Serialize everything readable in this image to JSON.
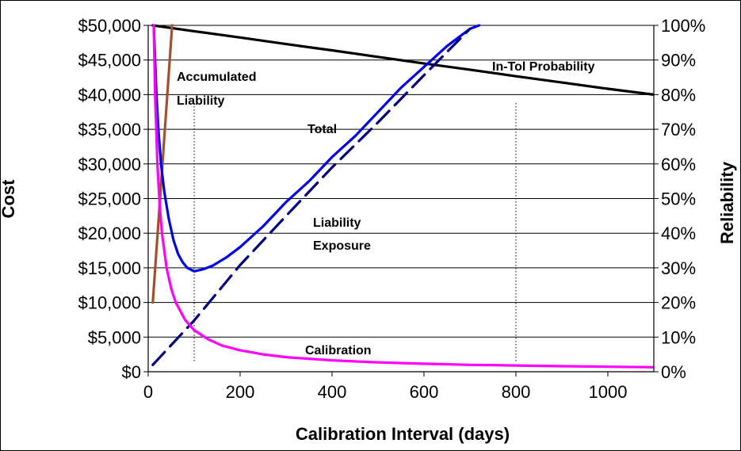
{
  "chart_data": {
    "type": "line",
    "title": "",
    "xlabel": "Calibration Interval (days)",
    "ylabel": "Cost",
    "y2label": "Reliability",
    "xlim": [
      0,
      1100
    ],
    "ylim": [
      0,
      50000
    ],
    "y2lim": [
      0,
      100
    ],
    "x_ticks": [
      0,
      200,
      400,
      600,
      800,
      1000
    ],
    "y_ticks": [
      0,
      5000,
      10000,
      15000,
      20000,
      25000,
      30000,
      35000,
      40000,
      45000,
      50000
    ],
    "y_tick_labels": [
      "$0",
      "$5,000",
      "$10,000",
      "$15,000",
      "$20,000",
      "$25,000",
      "$30,000",
      "$35,000",
      "$40,000",
      "$45,000",
      "$50,000"
    ],
    "y2_ticks": [
      0,
      10,
      20,
      30,
      40,
      50,
      60,
      70,
      80,
      90,
      100
    ],
    "y2_tick_labels": [
      "0%",
      "10%",
      "20%",
      "30%",
      "40%",
      "50%",
      "60%",
      "70%",
      "80%",
      "90%",
      "100%"
    ],
    "grid": "horizontal",
    "series": [
      {
        "key": "reliability",
        "axis": "y2",
        "color": "#000000",
        "dash": false,
        "x": [
          10,
          100,
          200,
          300,
          400,
          500,
          600,
          700,
          800,
          900,
          1000,
          1100
        ],
        "y": [
          100,
          98.3,
          96.5,
          94.6,
          92.8,
          90.9,
          89.0,
          87.2,
          85.3,
          83.5,
          81.7,
          80.0
        ]
      },
      {
        "key": "accumulated",
        "axis": "y",
        "color": "#a0522d",
        "dash": false,
        "x": [
          10,
          52
        ],
        "y": [
          10000,
          50000
        ]
      },
      {
        "key": "total",
        "axis": "y",
        "color": "#0000ee",
        "dash": false,
        "x": [
          12,
          15,
          18,
          22,
          28,
          35,
          45,
          55,
          65,
          75,
          85,
          100,
          120,
          140,
          170,
          200,
          250,
          300,
          350,
          400,
          450,
          500,
          550,
          600,
          650,
          700,
          720
        ],
        "y": [
          50000,
          45000,
          40000,
          35000,
          30000,
          26000,
          22000,
          19000,
          17000,
          15800,
          15000,
          14500,
          14800,
          15300,
          16500,
          18000,
          21000,
          24500,
          27500,
          31000,
          34000,
          37500,
          41000,
          44000,
          47000,
          49500,
          50000
        ]
      },
      {
        "key": "liability",
        "axis": "y",
        "color": "#000080",
        "dash": true,
        "x": [
          10,
          100,
          200,
          300,
          400,
          500,
          600,
          700
        ],
        "y": [
          1000,
          7400,
          15400,
          22500,
          29500,
          36000,
          42800,
          49500
        ]
      },
      {
        "key": "calibration",
        "axis": "y",
        "color": "#ff00ff",
        "dash": false,
        "x": [
          12,
          15,
          20,
          25,
          30,
          40,
          50,
          60,
          80,
          100,
          130,
          160,
          200,
          250,
          300,
          400,
          500,
          600,
          700,
          800,
          900,
          1000,
          1100
        ],
        "y": [
          50000,
          40000,
          30000,
          24000,
          20000,
          15000,
          12000,
          10000,
          7500,
          6000,
          4700,
          3800,
          3100,
          2500,
          2100,
          1650,
          1350,
          1150,
          1000,
          900,
          800,
          720,
          650
        ]
      }
    ],
    "reference_lines_x": [
      100,
      800
    ],
    "annotations": [
      {
        "line1": "Accumulated",
        "line2": "Liability"
      },
      {
        "line1": "Total"
      },
      {
        "line1": "Liability",
        "line2": "Exposure"
      },
      {
        "line1": "Calibration"
      },
      {
        "line1": "In-Tol Probability"
      }
    ]
  }
}
